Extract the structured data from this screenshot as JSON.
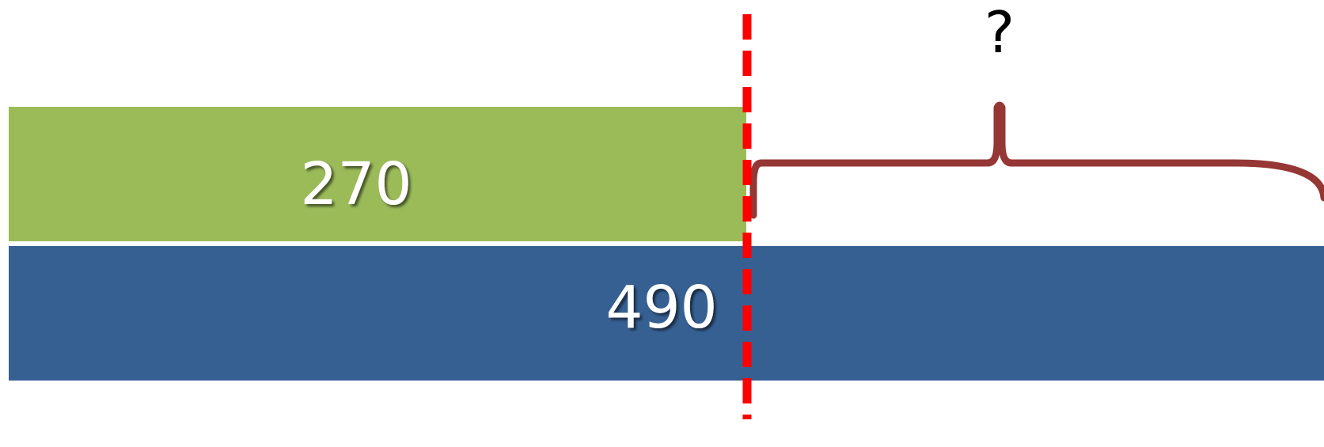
{
  "bars": {
    "top": {
      "value_label": "270",
      "color": "#9bbb59"
    },
    "bottom": {
      "value_label": "490",
      "color": "#366092"
    }
  },
  "difference": {
    "label": "?",
    "brace_color": "#953735"
  },
  "divider": {
    "color": "#ff0000",
    "style": "dashed"
  }
}
